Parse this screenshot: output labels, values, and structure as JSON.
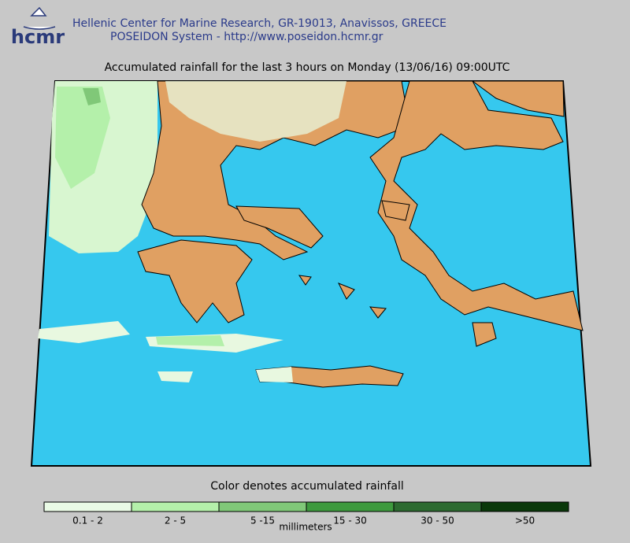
{
  "header": {
    "logo": "hcmr",
    "lines": [
      "Hellenic Center for Marine Research, GR-19013, Anavissos, GREECE",
      "POSEIDON System - http://www.poseidon.hcmr.gr"
    ]
  },
  "map": {
    "title": "Accumulated rainfall for the last 3 hours on Monday (13/06/16) 09:00UTC"
  },
  "legend": {
    "caption": "Color denotes accumulated rainfall",
    "unit": "millimeters",
    "bins": [
      {
        "label": "0.1 - 2",
        "color": "#eafbe6"
      },
      {
        "label": "2 - 5",
        "color": "#b4f0aa"
      },
      {
        "label": "5 -15",
        "color": "#80c878"
      },
      {
        "label": "15 - 30",
        "color": "#3e9a3e"
      },
      {
        "label": "30 - 50",
        "color": "#2c6a30"
      },
      {
        "label": ">50",
        "color": "#0a380a"
      }
    ]
  }
}
